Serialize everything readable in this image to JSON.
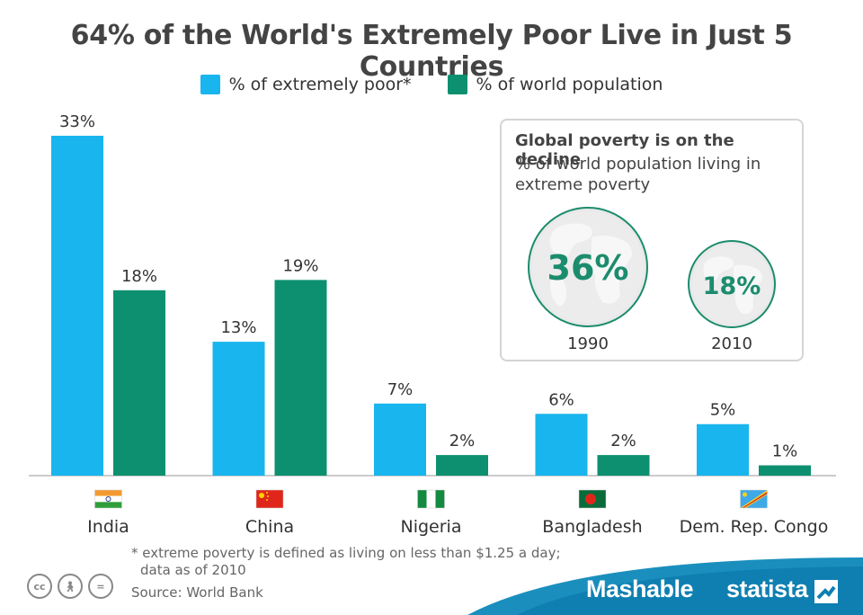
{
  "title": "64% of the World's Extremely Poor Live in Just 5 Countries",
  "colors": {
    "poor": "#19b5ee",
    "population": "#0d9070",
    "globe_text": "#1b8c6d"
  },
  "chart_data": {
    "type": "bar",
    "title": "64% of the World's Extremely Poor Live in Just 5 Countries",
    "categories": [
      "India",
      "China",
      "Nigeria",
      "Bangladesh",
      "Dem. Rep. Congo"
    ],
    "flags": [
      "india-flag",
      "china-flag",
      "nigeria-flag",
      "bangladesh-flag",
      "dr-congo-flag"
    ],
    "series": [
      {
        "name": "% of extremely poor*",
        "values": [
          33,
          13,
          7,
          6,
          5
        ],
        "labels": [
          "33%",
          "13%",
          "7%",
          "6%",
          "5%"
        ]
      },
      {
        "name": "% of world population",
        "values": [
          18,
          19,
          2,
          2,
          1
        ],
        "labels": [
          "18%",
          "19%",
          "2%",
          "2%",
          "1%"
        ]
      }
    ],
    "ylim": [
      0,
      33
    ],
    "xlabel": "",
    "ylabel": "",
    "legend": "top-center"
  },
  "inset": {
    "title": "Global poverty is on the decline",
    "subtitle": "% of world population living in extreme poverty",
    "globes": [
      {
        "year": "1990",
        "value": "36%",
        "number": 36
      },
      {
        "year": "2010",
        "value": "18%",
        "number": 18
      }
    ]
  },
  "footnote_line1": "* extreme poverty is defined as living on less than $1.25 a day;",
  "footnote_line2": "data as of 2010",
  "source": "Source: World Bank",
  "brands": {
    "mashable": "Mashable",
    "statista": "statista"
  },
  "license_icons": [
    "cc-icon",
    "attribution-icon",
    "no-derivatives-icon"
  ]
}
